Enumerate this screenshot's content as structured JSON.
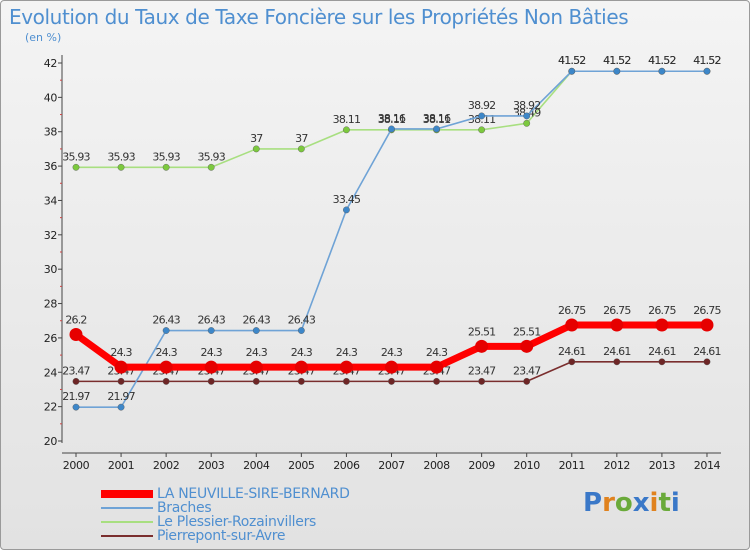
{
  "title": "Evolution du Taux de Taxe Foncière sur les Propriétés Non Bâties",
  "subtitle": "(en %)",
  "logo": {
    "letters": [
      "P",
      "r",
      "o",
      "x",
      "i",
      "t",
      "i"
    ],
    "colors": [
      "#3a78c8",
      "#e0821e",
      "#6aaa3a",
      "#3a78c8",
      "#e0821e",
      "#6aaa3a",
      "#3a78c8"
    ]
  },
  "chart_data": {
    "type": "line",
    "x": [
      "2000",
      "2001",
      "2002",
      "2003",
      "2004",
      "2005",
      "2006",
      "2007",
      "2008",
      "2009",
      "2010",
      "2011",
      "2012",
      "2013",
      "2014"
    ],
    "ylim": [
      20,
      42
    ],
    "yticks": [
      20,
      22,
      24,
      26,
      28,
      30,
      32,
      34,
      36,
      38,
      40,
      42
    ],
    "grid": false,
    "legend_position": "bottom-left",
    "series": [
      {
        "name": "Pierrepont-sur-Avre",
        "color": "#7a2e2e",
        "marker": "#6e2626",
        "values": [
          23.47,
          23.47,
          23.47,
          23.47,
          23.47,
          23.47,
          23.47,
          23.47,
          23.47,
          23.47,
          23.47,
          24.61,
          24.61,
          24.61,
          24.61
        ],
        "labels": [
          "23.47",
          "23.47",
          "23.47",
          "23.47",
          "23.47",
          "23.47",
          "23.47",
          "23.47",
          "23.47",
          "23.47",
          "23.47",
          "24.61",
          "24.61",
          "24.61",
          "24.61"
        ]
      },
      {
        "name": "Le Plessier-Rozainvillers",
        "color": "#a8df80",
        "marker": "#7cc93e",
        "values": [
          35.93,
          35.93,
          35.93,
          35.93,
          37,
          37,
          38.11,
          38.11,
          38.11,
          38.11,
          38.49,
          41.52,
          41.52,
          41.52,
          41.52
        ],
        "labels": [
          "35.93",
          "35.93",
          "35.93",
          "35.93",
          "37",
          "37",
          "38.11",
          "38.11",
          "38.11",
          "38.11",
          "38.49",
          "41.52",
          "41.52",
          "41.52",
          "41.52"
        ]
      },
      {
        "name": "Braches",
        "color": "#6fa3d6",
        "marker": "#3d87c9",
        "values": [
          21.97,
          21.97,
          26.43,
          26.43,
          26.43,
          26.43,
          33.45,
          38.16,
          38.16,
          38.92,
          38.92,
          41.52,
          41.52,
          41.52,
          41.52
        ],
        "labels": [
          "21.97",
          "21.97",
          "26.43",
          "26.43",
          "26.43",
          "26.43",
          "33.45",
          "38.16",
          "38.16",
          "38.92",
          "38.92",
          "41.52",
          "41.52",
          "41.52",
          "41.52"
        ]
      },
      {
        "name": "LA NEUVILLE-SIRE-BERNARD",
        "color": "#ff0000",
        "marker": "#e60000",
        "values": [
          26.2,
          24.3,
          24.3,
          24.3,
          24.3,
          24.3,
          24.3,
          24.3,
          24.3,
          25.51,
          25.51,
          26.75,
          26.75,
          26.75,
          26.75
        ],
        "labels": [
          "26.2",
          "24.3",
          "24.3",
          "24.3",
          "24.3",
          "24.3",
          "24.3",
          "24.3",
          "24.3",
          "25.51",
          "25.51",
          "26.75",
          "26.75",
          "26.75",
          "26.75"
        ]
      }
    ]
  }
}
